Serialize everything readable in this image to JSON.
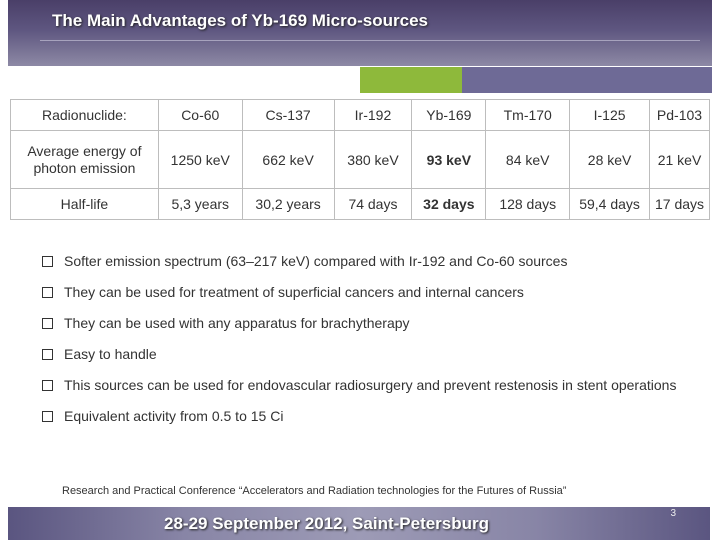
{
  "title": "The Main Advantages of Yb-169 Micro-sources",
  "table": {
    "rows": [
      [
        "Radionuclide:",
        "Co-60",
        "Cs-137",
        "Ir-192",
        "Yb-169",
        "Tm-170",
        "I-125",
        "Pd-103"
      ],
      [
        "Average energy of photon emission",
        "1250 keV",
        "662 keV",
        "380 keV",
        "93 keV",
        "84 keV",
        "28 keV",
        "21 keV"
      ],
      [
        "Half-life",
        "5,3 years",
        "30,2 years",
        "74 days",
        "32 days",
        "128 days",
        "59,4 days",
        "17 days"
      ]
    ]
  },
  "bullets": [
    "Softer emission spectrum (63–217 keV) compared with Ir-192 and Co-60 sources",
    "They can be used for treatment of superficial cancers and internal cancers",
    "They can be used with any apparatus for brachytherapy",
    "Easy to handle",
    "This sources can be used for endovascular radiosurgery and prevent restenosis in stent operations",
    "Equivalent activity from 0.5 to 15 Ci"
  ],
  "conference": "Research and Practical Conference “Accelerators and Radiation technologies for the Futures of Russia”",
  "footer": {
    "date": "28-29 September 2012, Saint-Petersburg",
    "page": "3"
  },
  "colors": {
    "header": "#5e5680",
    "accent_green": "#8eb93b",
    "accent_purple": "#6e6a96"
  }
}
